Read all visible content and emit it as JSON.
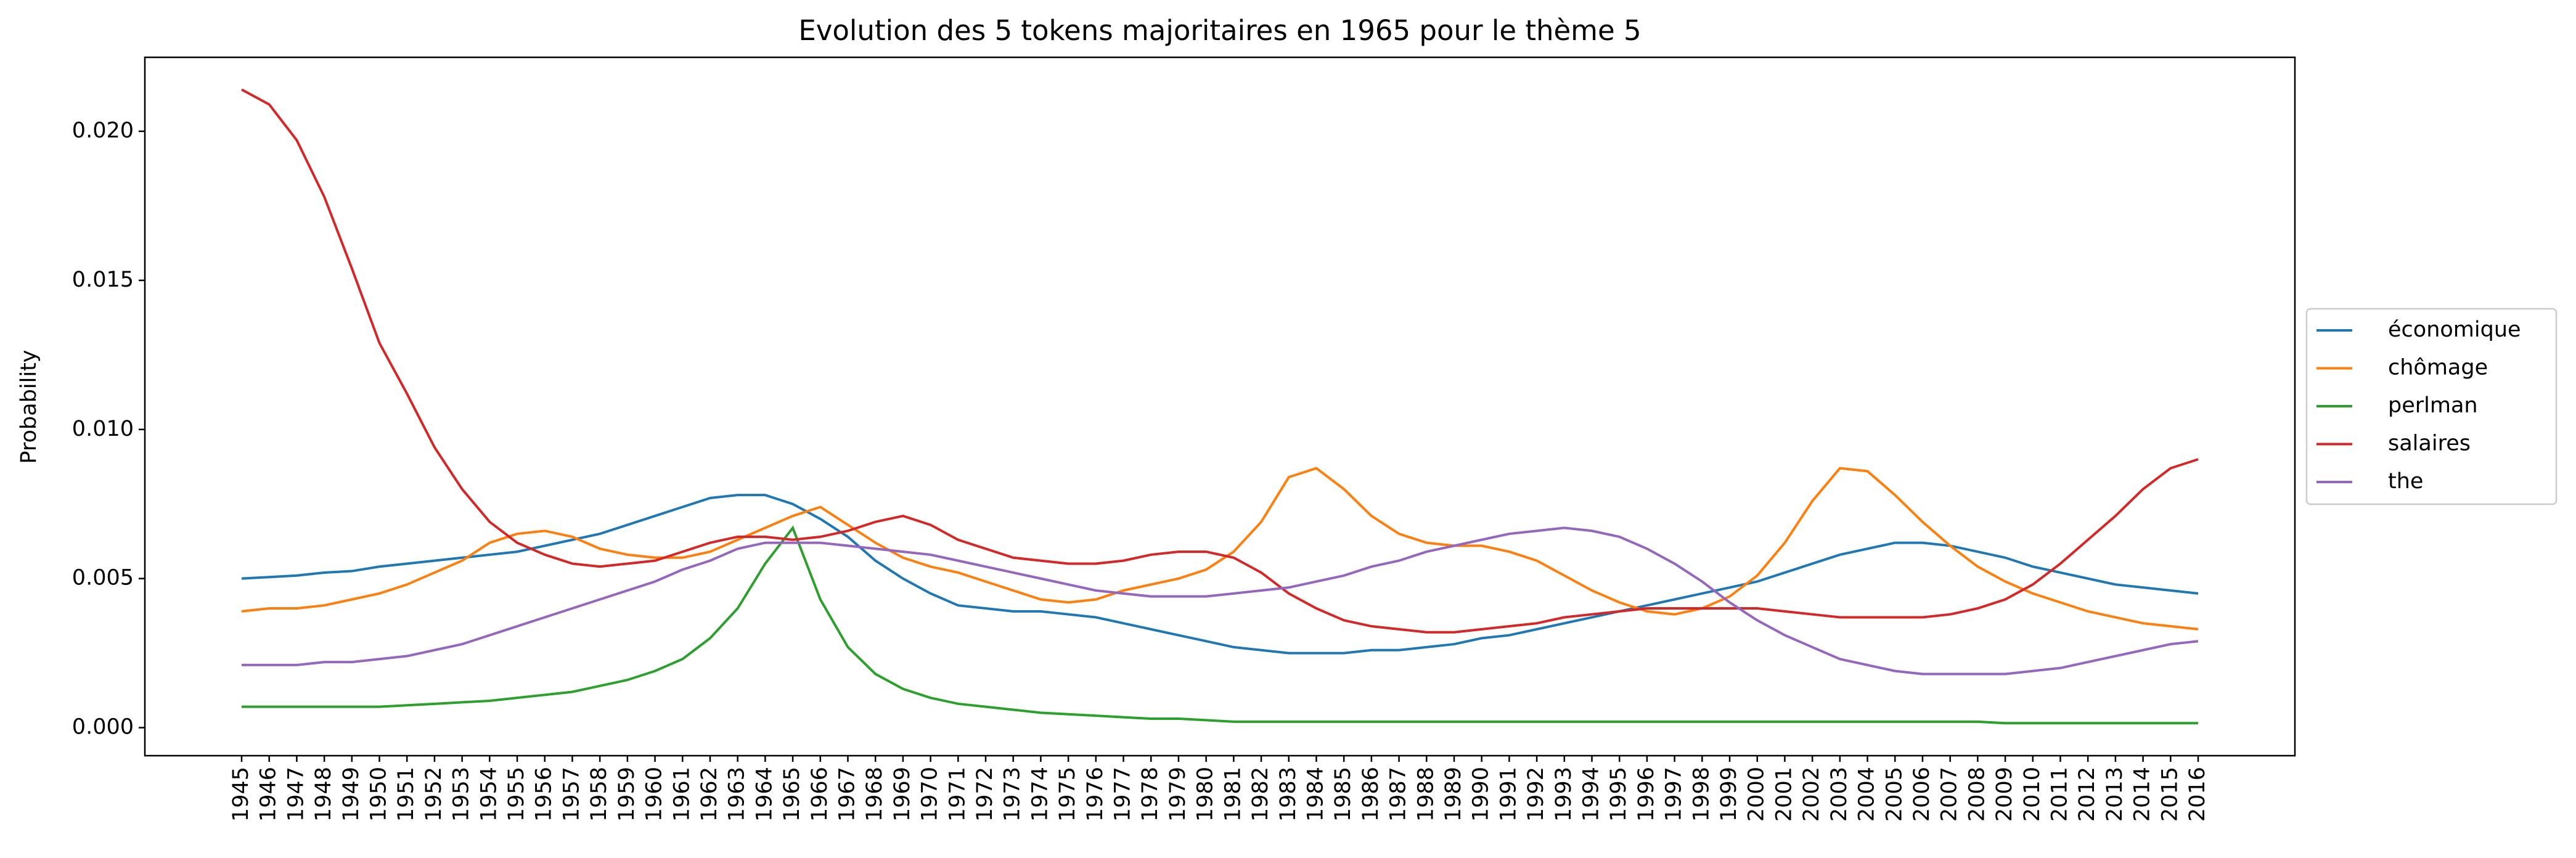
{
  "chart_data": {
    "type": "line",
    "title": "Evolution des 5 tokens majoritaires en 1965 pour le thème 5",
    "y_label": "Probability",
    "categories": [
      "1945",
      "1946",
      "1947",
      "1948",
      "1949",
      "1950",
      "1951",
      "1952",
      "1953",
      "1954",
      "1955",
      "1956",
      "1957",
      "1958",
      "1959",
      "1960",
      "1961",
      "1962",
      "1963",
      "1964",
      "1965",
      "1966",
      "1967",
      "1968",
      "1969",
      "1970",
      "1971",
      "1972",
      "1973",
      "1974",
      "1975",
      "1976",
      "1977",
      "1978",
      "1979",
      "1980",
      "1981",
      "1982",
      "1983",
      "1984",
      "1985",
      "1986",
      "1987",
      "1988",
      "1989",
      "1990",
      "1991",
      "1992",
      "1993",
      "1994",
      "1995",
      "1996",
      "1997",
      "1998",
      "1999",
      "2000",
      "2001",
      "2002",
      "2003",
      "2004",
      "2005",
      "2006",
      "2007",
      "2008",
      "2009",
      "2010",
      "2011",
      "2012",
      "2013",
      "2014",
      "2015",
      "2016"
    ],
    "series": [
      {
        "name": "économique",
        "color": "#1f77b4",
        "values": [
          0.005,
          0.00505,
          0.0051,
          0.0052,
          0.00525,
          0.0054,
          0.0055,
          0.0056,
          0.0057,
          0.0058,
          0.0059,
          0.0061,
          0.0063,
          0.0065,
          0.0068,
          0.0071,
          0.0074,
          0.0077,
          0.0078,
          0.0078,
          0.0075,
          0.007,
          0.0064,
          0.0056,
          0.005,
          0.0045,
          0.0041,
          0.004,
          0.0039,
          0.0039,
          0.0038,
          0.0037,
          0.0035,
          0.0033,
          0.0031,
          0.0029,
          0.0027,
          0.0026,
          0.0025,
          0.0025,
          0.0025,
          0.0026,
          0.0026,
          0.0027,
          0.0028,
          0.003,
          0.0031,
          0.0033,
          0.0035,
          0.0037,
          0.0039,
          0.0041,
          0.0043,
          0.0045,
          0.0047,
          0.0049,
          0.0052,
          0.0055,
          0.0058,
          0.006,
          0.0062,
          0.0062,
          0.0061,
          0.0059,
          0.0057,
          0.0054,
          0.0052,
          0.005,
          0.0048,
          0.0047,
          0.0046,
          0.0045
        ]
      },
      {
        "name": "chômage",
        "color": "#ff7f0e",
        "values": [
          0.0039,
          0.004,
          0.004,
          0.0041,
          0.0043,
          0.0045,
          0.0048,
          0.0052,
          0.0056,
          0.0062,
          0.0065,
          0.0066,
          0.0064,
          0.006,
          0.0058,
          0.0057,
          0.0057,
          0.0059,
          0.0063,
          0.0067,
          0.0071,
          0.0074,
          0.0068,
          0.0062,
          0.0057,
          0.0054,
          0.0052,
          0.0049,
          0.0046,
          0.0043,
          0.0042,
          0.0043,
          0.0046,
          0.0048,
          0.005,
          0.0053,
          0.0059,
          0.0069,
          0.0084,
          0.0087,
          0.008,
          0.0071,
          0.0065,
          0.0062,
          0.0061,
          0.0061,
          0.0059,
          0.0056,
          0.0051,
          0.0046,
          0.0042,
          0.0039,
          0.0038,
          0.004,
          0.0044,
          0.0051,
          0.0062,
          0.0076,
          0.0087,
          0.0086,
          0.0078,
          0.0069,
          0.0061,
          0.0054,
          0.0049,
          0.0045,
          0.0042,
          0.0039,
          0.0037,
          0.0035,
          0.0034,
          0.0033
        ]
      },
      {
        "name": "perlman",
        "color": "#2ca02c",
        "values": [
          0.0007,
          0.0007,
          0.0007,
          0.0007,
          0.0007,
          0.0007,
          0.00075,
          0.0008,
          0.00085,
          0.0009,
          0.001,
          0.0011,
          0.0012,
          0.0014,
          0.0016,
          0.0019,
          0.0023,
          0.003,
          0.004,
          0.0055,
          0.0067,
          0.0043,
          0.0027,
          0.0018,
          0.0013,
          0.001,
          0.0008,
          0.0007,
          0.0006,
          0.0005,
          0.00045,
          0.0004,
          0.00035,
          0.0003,
          0.0003,
          0.00025,
          0.0002,
          0.0002,
          0.0002,
          0.0002,
          0.0002,
          0.0002,
          0.0002,
          0.0002,
          0.0002,
          0.0002,
          0.0002,
          0.0002,
          0.0002,
          0.0002,
          0.0002,
          0.0002,
          0.0002,
          0.0002,
          0.0002,
          0.0002,
          0.0002,
          0.0002,
          0.0002,
          0.0002,
          0.0002,
          0.0002,
          0.0002,
          0.0002,
          0.00015,
          0.00015,
          0.00015,
          0.00015,
          0.00015,
          0.00015,
          0.00015,
          0.00015
        ]
      },
      {
        "name": "salaires",
        "color": "#d62728",
        "values": [
          0.0214,
          0.0209,
          0.0197,
          0.0178,
          0.0154,
          0.0129,
          0.0112,
          0.0094,
          0.008,
          0.0069,
          0.0062,
          0.0058,
          0.0055,
          0.0054,
          0.0055,
          0.0056,
          0.0059,
          0.0062,
          0.0064,
          0.0064,
          0.0063,
          0.0064,
          0.0066,
          0.0069,
          0.0071,
          0.0068,
          0.0063,
          0.006,
          0.0057,
          0.0056,
          0.0055,
          0.0055,
          0.0056,
          0.0058,
          0.0059,
          0.0059,
          0.0057,
          0.0052,
          0.0045,
          0.004,
          0.0036,
          0.0034,
          0.0033,
          0.0032,
          0.0032,
          0.0033,
          0.0034,
          0.0035,
          0.0037,
          0.0038,
          0.0039,
          0.004,
          0.004,
          0.004,
          0.004,
          0.004,
          0.0039,
          0.0038,
          0.0037,
          0.0037,
          0.0037,
          0.0037,
          0.0038,
          0.004,
          0.0043,
          0.0048,
          0.0055,
          0.0063,
          0.0071,
          0.008,
          0.0087,
          0.009
        ]
      },
      {
        "name": "the",
        "color": "#9467bd",
        "values": [
          0.0021,
          0.0021,
          0.0021,
          0.0022,
          0.0022,
          0.0023,
          0.0024,
          0.0026,
          0.0028,
          0.0031,
          0.0034,
          0.0037,
          0.004,
          0.0043,
          0.0046,
          0.0049,
          0.0053,
          0.0056,
          0.006,
          0.0062,
          0.0062,
          0.0062,
          0.0061,
          0.006,
          0.0059,
          0.0058,
          0.0056,
          0.0054,
          0.0052,
          0.005,
          0.0048,
          0.0046,
          0.0045,
          0.0044,
          0.0044,
          0.0044,
          0.0045,
          0.0046,
          0.0047,
          0.0049,
          0.0051,
          0.0054,
          0.0056,
          0.0059,
          0.0061,
          0.0063,
          0.0065,
          0.0066,
          0.0067,
          0.0066,
          0.0064,
          0.006,
          0.0055,
          0.0049,
          0.0042,
          0.0036,
          0.0031,
          0.0027,
          0.0023,
          0.0021,
          0.0019,
          0.0018,
          0.0018,
          0.0018,
          0.0018,
          0.0019,
          0.002,
          0.0022,
          0.0024,
          0.0026,
          0.0028,
          0.0029
        ]
      }
    ],
    "ylim": [
      -0.00094,
      0.02248
    ],
    "yticks": [
      {
        "value": 0,
        "label": "0.000"
      },
      {
        "value": 0.005,
        "label": "0.005"
      },
      {
        "value": 0.01,
        "label": "0.010"
      },
      {
        "value": 0.015,
        "label": "0.015"
      },
      {
        "value": 0.02,
        "label": "0.020"
      }
    ],
    "grid": false,
    "legend": "right"
  }
}
